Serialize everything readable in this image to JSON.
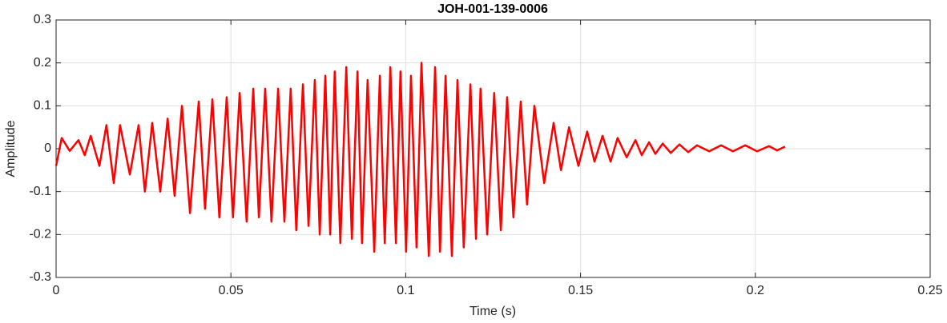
{
  "chart_data": {
    "type": "line",
    "title": "JOH-001-139-0006",
    "xlabel": "Time (s)",
    "ylabel": "Amplitude",
    "x": [
      0,
      0.0016,
      0.0039,
      0.0064,
      0.0082,
      0.0099,
      0.0124,
      0.0144,
      0.0165,
      0.0183,
      0.0211,
      0.0236,
      0.0254,
      0.0275,
      0.0298,
      0.0319,
      0.0339,
      0.036,
      0.0383,
      0.0408,
      0.0426,
      0.0447,
      0.0467,
      0.0488,
      0.0506,
      0.0525,
      0.0545,
      0.0564,
      0.058,
      0.0598,
      0.0616,
      0.0635,
      0.0653,
      0.0671,
      0.0687,
      0.0706,
      0.0722,
      0.074,
      0.0754,
      0.077,
      0.0784,
      0.0797,
      0.0813,
      0.083,
      0.0846,
      0.0862,
      0.0875,
      0.0891,
      0.091,
      0.0926,
      0.094,
      0.0956,
      0.0972,
      0.0985,
      0.1001,
      0.1015,
      0.1031,
      0.1045,
      0.1066,
      0.1084,
      0.1098,
      0.1114,
      0.1132,
      0.1148,
      0.1166,
      0.1185,
      0.1201,
      0.1214,
      0.1233,
      0.1253,
      0.1272,
      0.129,
      0.1308,
      0.1329,
      0.1347,
      0.1368,
      0.1396,
      0.1423,
      0.1444,
      0.1467,
      0.1494,
      0.1519,
      0.154,
      0.1563,
      0.1586,
      0.1606,
      0.1632,
      0.1657,
      0.1675,
      0.1696,
      0.1714,
      0.1735,
      0.1758,
      0.1783,
      0.1808,
      0.1833,
      0.1868,
      0.1902,
      0.1936,
      0.1971,
      0.2005,
      0.2039,
      0.2062,
      0.2085
    ],
    "values": [
      -0.04,
      0.025,
      -0.005,
      0.02,
      -0.015,
      0.03,
      -0.04,
      0.055,
      -0.08,
      0.055,
      -0.06,
      0.055,
      -0.1,
      0.06,
      -0.1,
      0.07,
      -0.11,
      0.1,
      -0.15,
      0.11,
      -0.14,
      0.115,
      -0.16,
      0.12,
      -0.16,
      0.13,
      -0.17,
      0.14,
      -0.16,
      0.14,
      -0.17,
      0.14,
      -0.17,
      0.14,
      -0.19,
      0.15,
      -0.18,
      0.16,
      -0.2,
      0.17,
      -0.2,
      0.18,
      -0.22,
      0.19,
      -0.21,
      0.18,
      -0.22,
      0.16,
      -0.24,
      0.17,
      -0.22,
      0.19,
      -0.22,
      0.18,
      -0.24,
      0.17,
      -0.23,
      0.2,
      -0.25,
      0.19,
      -0.24,
      0.17,
      -0.25,
      0.16,
      -0.23,
      0.15,
      -0.21,
      0.14,
      -0.2,
      0.13,
      -0.19,
      0.12,
      -0.16,
      0.11,
      -0.13,
      0.1,
      -0.08,
      0.06,
      -0.05,
      0.05,
      -0.04,
      0.04,
      -0.03,
      0.03,
      -0.03,
      0.025,
      -0.02,
      0.02,
      -0.015,
      0.015,
      -0.012,
      0.012,
      -0.01,
      0.01,
      -0.008,
      0.008,
      -0.006,
      0.008,
      -0.006,
      0.008,
      -0.006,
      0.006,
      -0.004,
      0.005
    ],
    "color": "#ff0000",
    "xlim": [
      0,
      0.25
    ],
    "xticks": [
      0,
      0.05,
      0.1,
      0.15,
      0.2,
      0.25
    ],
    "ylim": [
      -0.3,
      0.3
    ],
    "yticks": [
      -0.3,
      -0.2,
      -0.1,
      0,
      0.1,
      0.2,
      0.3
    ],
    "grid": true
  }
}
